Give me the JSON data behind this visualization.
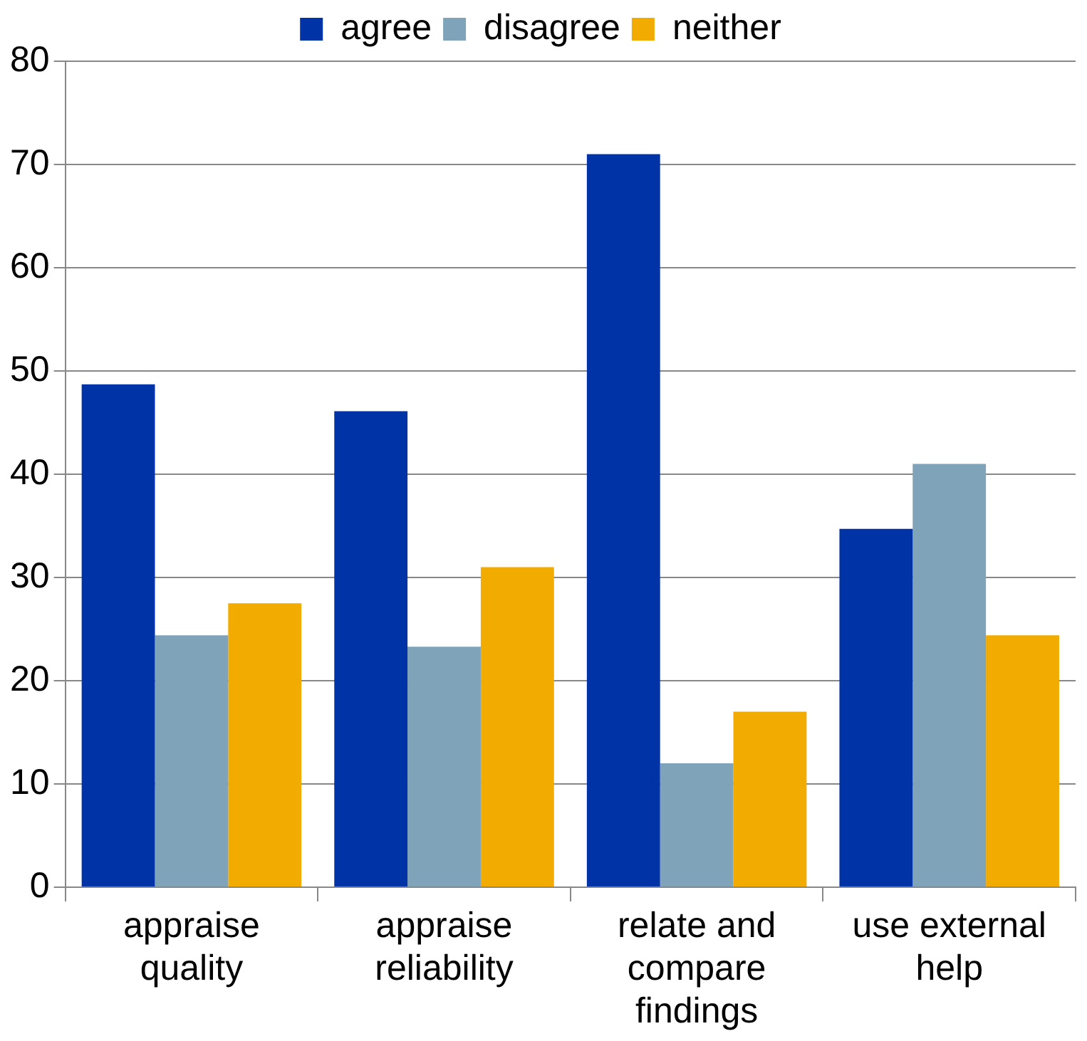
{
  "chart_data": {
    "type": "bar",
    "categories": [
      "appraise quality",
      "appraise reliability",
      "relate and compare findings",
      "use external help"
    ],
    "series": [
      {
        "name": "agree",
        "color": "#0033a6",
        "values": [
          48.7,
          46.1,
          71,
          34.7
        ]
      },
      {
        "name": "disagree",
        "color": "#7fa3b8",
        "values": [
          24.4,
          23.3,
          12,
          41
        ]
      },
      {
        "name": "neither",
        "color": "#f2ab00",
        "values": [
          27.5,
          31,
          17,
          24.4
        ]
      }
    ],
    "ylim": [
      0,
      80
    ],
    "yticks": [
      0,
      10,
      20,
      30,
      40,
      50,
      60,
      70,
      80
    ],
    "grid": "y",
    "legend": "top"
  }
}
